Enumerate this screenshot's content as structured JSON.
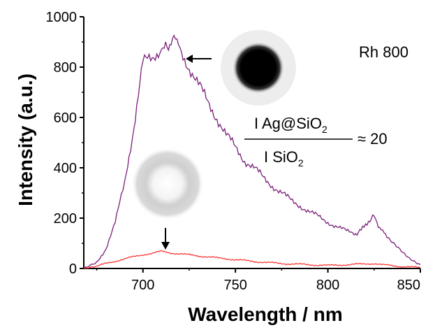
{
  "chart_data": {
    "type": "line",
    "title": "",
    "xlabel": "Wavelength / nm",
    "ylabel": "Intensity (a.u.)",
    "xlim": [
      668,
      850
    ],
    "ylim": [
      0,
      1000
    ],
    "xticks": [
      700,
      750,
      800,
      850
    ],
    "yticks": [
      0,
      200,
      400,
      600,
      800,
      1000
    ],
    "grid": false,
    "legend": "none",
    "series": [
      {
        "color": "#7a1f7a",
        "x": [
          668,
          675,
          680,
          685,
          690,
          695,
          700,
          705,
          710,
          713,
          716,
          720,
          725,
          730,
          735,
          740,
          745,
          750,
          755,
          760,
          765,
          770,
          775,
          780,
          785,
          790,
          795,
          800,
          805,
          810,
          815,
          818,
          822,
          825,
          828,
          832,
          838,
          844,
          850
        ],
        "y": [
          0,
          25,
          80,
          180,
          340,
          560,
          820,
          830,
          880,
          870,
          920,
          870,
          800,
          730,
          660,
          600,
          530,
          480,
          430,
          400,
          360,
          330,
          300,
          270,
          250,
          225,
          205,
          185,
          165,
          148,
          140,
          150,
          190,
          205,
          165,
          120,
          85,
          45,
          15
        ]
      },
      {
        "color": "#ff3333",
        "x": [
          668,
          675,
          680,
          690,
          700,
          705,
          710,
          715,
          720,
          730,
          740,
          750,
          760,
          770,
          780,
          790,
          800,
          810,
          820,
          825,
          830,
          840,
          850
        ],
        "y": [
          0,
          8,
          20,
          38,
          55,
          60,
          68,
          62,
          58,
          50,
          42,
          35,
          28,
          22,
          18,
          15,
          12,
          15,
          18,
          20,
          14,
          8,
          3
        ]
      }
    ],
    "annotations": {
      "label_top_right": "Rh 800",
      "ratio_numerator": "I Ag@SiO",
      "ratio_numerator_sub": "2",
      "ratio_denominator": "I SiO",
      "ratio_denominator_sub": "2",
      "ratio_value": "≈ 20"
    }
  }
}
